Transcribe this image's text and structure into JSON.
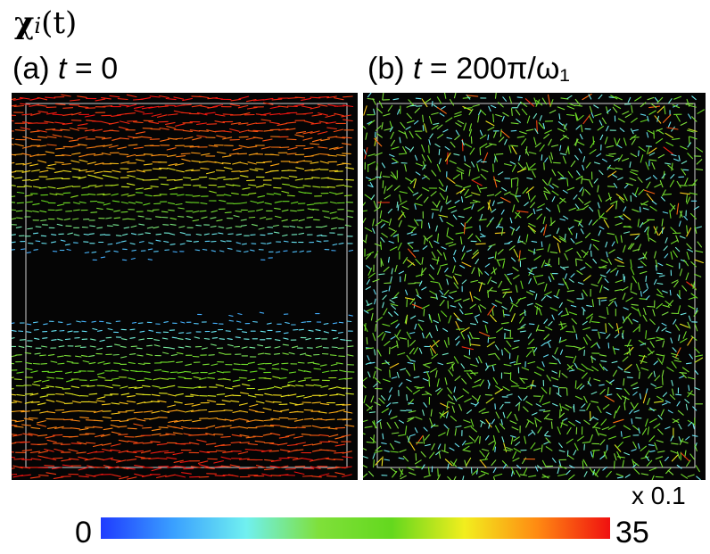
{
  "chart_data": {
    "type": "heatmap",
    "title_symbol": "χ",
    "title_subscript": "i",
    "title_arg": "(t)",
    "panels": [
      {
        "letter": "(a)",
        "time_var": "t",
        "time_value": "= 0",
        "pattern": "horizontal-bands"
      },
      {
        "letter": "(b)",
        "time_var": "t",
        "time_value": "= 200π/ω₁",
        "pattern": "random"
      }
    ],
    "colorbar": {
      "min": 0,
      "max": 35,
      "min_label": "0",
      "max_label": "35",
      "scale_label": "x 0.1",
      "colors": [
        "#1f3cff",
        "#3aa0ff",
        "#70f0f0",
        "#7fe03a",
        "#64d81e",
        "#f2ee1e",
        "#ff8a12",
        "#f01010"
      ]
    }
  }
}
